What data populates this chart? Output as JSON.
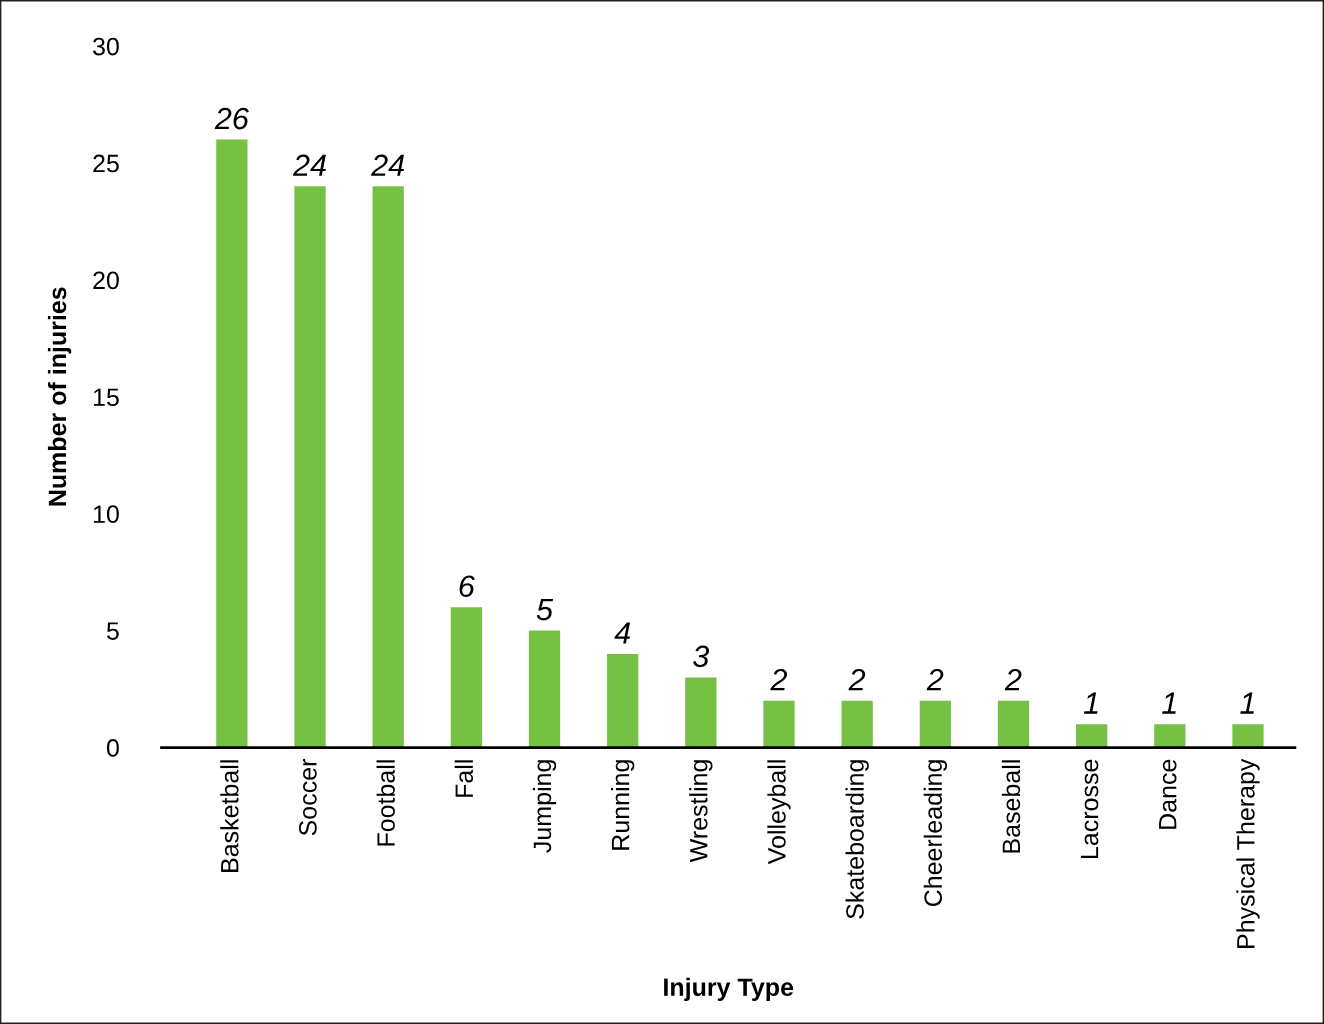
{
  "chart_data": {
    "type": "bar",
    "xlabel": "Injury Type",
    "ylabel": "Number of injuries",
    "categories": [
      "Basketball",
      "Soccer",
      "Football",
      "Fall",
      "Jumping",
      "Running",
      "Wrestling",
      "Volleyball",
      "Skateboarding",
      "Cheerleading",
      "Baseball",
      "Lacrosse",
      "Dance",
      "Physical Therapy"
    ],
    "values": [
      26,
      24,
      24,
      6,
      5,
      4,
      3,
      2,
      2,
      2,
      2,
      1,
      1,
      1
    ],
    "color": "#76c043",
    "ylim": [
      0,
      30
    ],
    "yticks": [
      0,
      5,
      10,
      15,
      20,
      25,
      30
    ],
    "grid": false,
    "data_labels": true,
    "legend": false
  }
}
